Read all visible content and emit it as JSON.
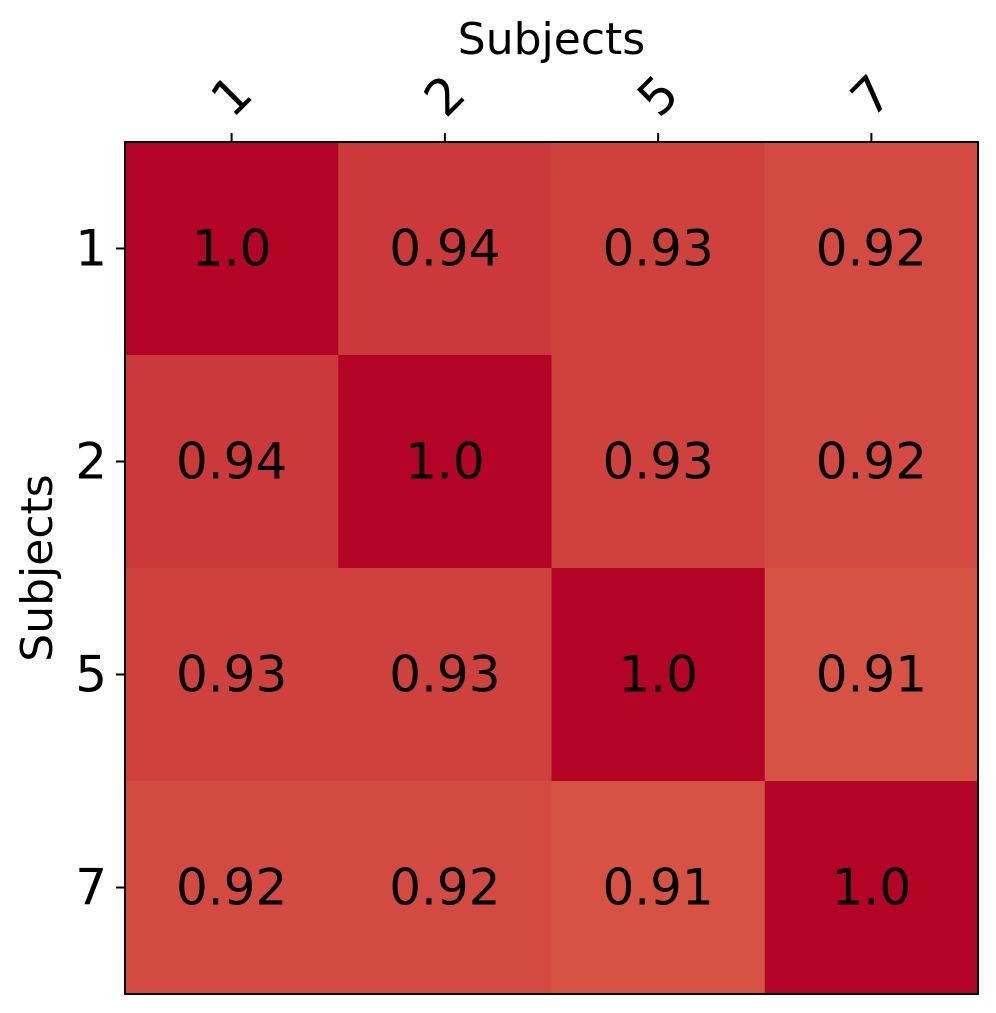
{
  "chart_data": {
    "type": "heatmap",
    "title": "",
    "xlabel": "Subjects",
    "ylabel": "Subjects",
    "x_categories": [
      "1",
      "2",
      "5",
      "7"
    ],
    "y_categories": [
      "1",
      "2",
      "5",
      "7"
    ],
    "values": [
      [
        1.0,
        0.94,
        0.93,
        0.92
      ],
      [
        0.94,
        1.0,
        0.93,
        0.92
      ],
      [
        0.93,
        0.93,
        1.0,
        0.91
      ],
      [
        0.92,
        0.92,
        0.91,
        1.0
      ]
    ],
    "value_labels": [
      [
        "1.0",
        "0.94",
        "0.93",
        "0.92"
      ],
      [
        "0.94",
        "1.0",
        "0.93",
        "0.92"
      ],
      [
        "0.93",
        "0.93",
        "1.0",
        "0.91"
      ],
      [
        "0.92",
        "0.92",
        "0.91",
        "1.0"
      ]
    ],
    "x_axis_position": "top",
    "x_tick_rotation": -45,
    "colormap": "reds",
    "color_min": "#d65344",
    "color_max": "#b40426",
    "grid": false,
    "legend": "none"
  }
}
